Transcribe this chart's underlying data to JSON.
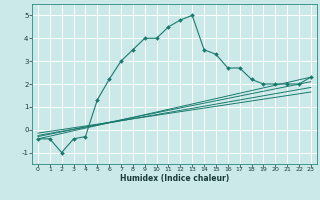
{
  "xlabel": "Humidex (Indice chaleur)",
  "bg_color": "#cce9e9",
  "grid_color": "#ffffff",
  "line_color": "#1a7a6e",
  "xlim": [
    -0.5,
    23.5
  ],
  "ylim": [
    -1.5,
    5.5
  ],
  "xticks": [
    0,
    1,
    2,
    3,
    4,
    5,
    6,
    7,
    8,
    9,
    10,
    11,
    12,
    13,
    14,
    15,
    16,
    17,
    18,
    19,
    20,
    21,
    22,
    23
  ],
  "yticks": [
    -1,
    0,
    1,
    2,
    3,
    4,
    5
  ],
  "curve1_x": [
    0,
    1,
    2,
    3,
    4,
    5,
    6,
    7,
    8,
    9,
    10,
    11,
    12,
    13,
    14,
    15,
    16,
    17,
    18,
    19,
    20,
    21,
    22,
    23
  ],
  "curve1_y": [
    -0.4,
    -0.4,
    -1.0,
    -0.4,
    -0.3,
    1.3,
    2.2,
    3.0,
    3.5,
    4.0,
    4.0,
    4.5,
    4.8,
    5.0,
    3.5,
    3.3,
    2.7,
    2.7,
    2.2,
    2.0,
    2.0,
    2.0,
    2.0,
    2.3
  ],
  "line1_x": [
    0,
    23
  ],
  "line1_y": [
    -0.4,
    2.3
  ],
  "line2_x": [
    0,
    23
  ],
  "line2_y": [
    -0.3,
    2.1
  ],
  "line3_x": [
    0,
    23
  ],
  "line3_y": [
    -0.25,
    1.85
  ],
  "line4_x": [
    0,
    23
  ],
  "line4_y": [
    -0.15,
    1.65
  ]
}
